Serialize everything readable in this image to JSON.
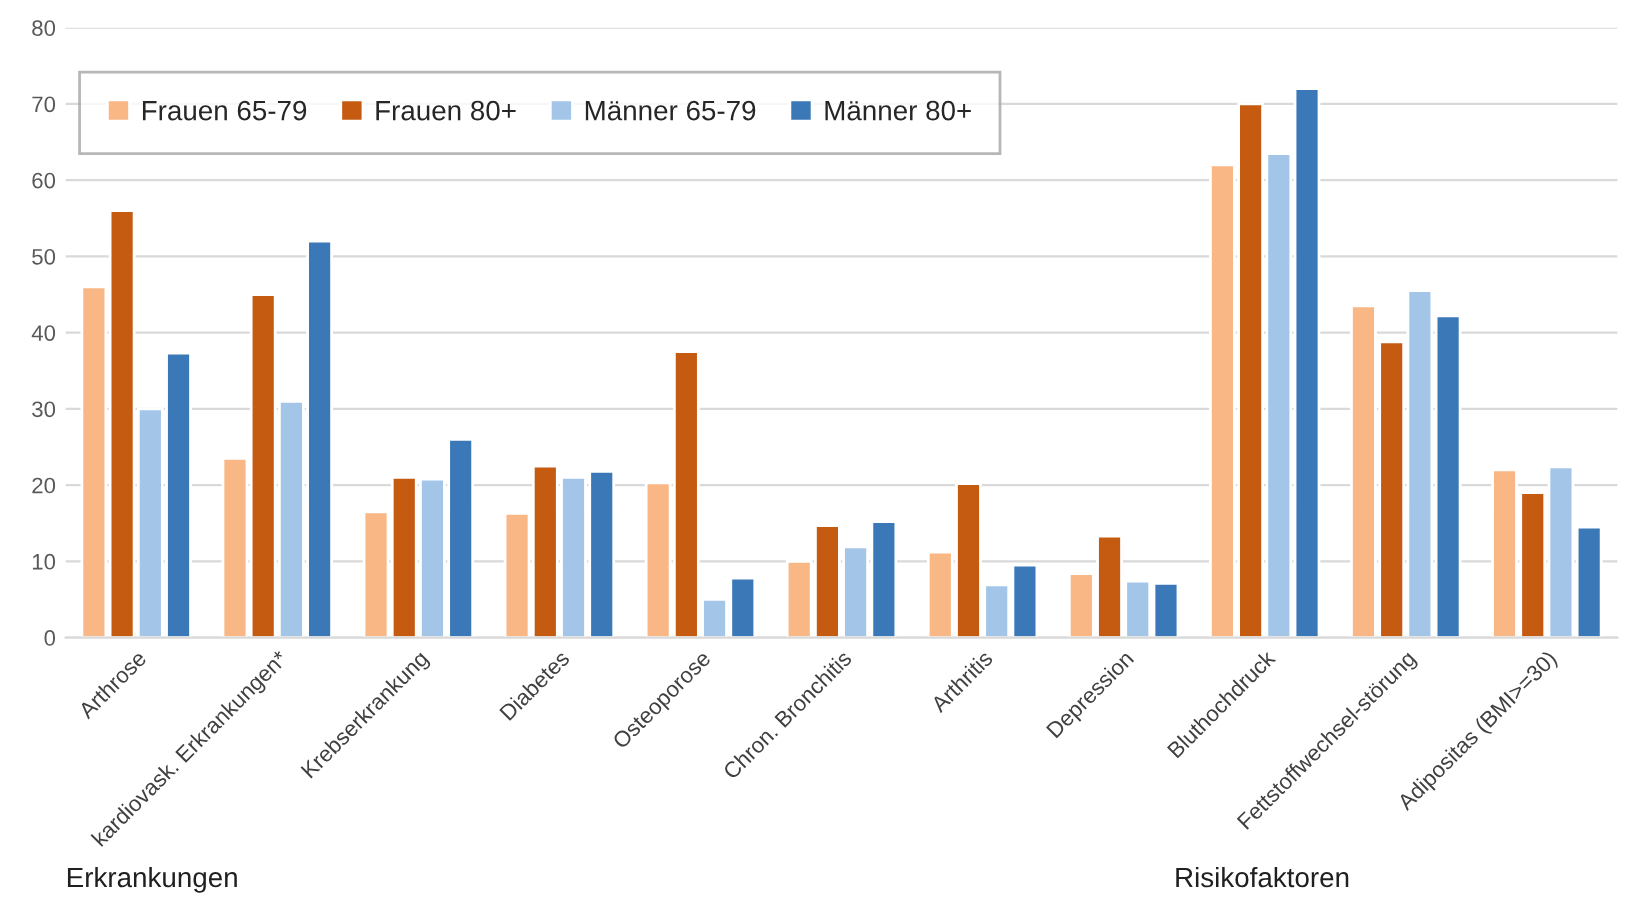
{
  "chart_data": {
    "type": "bar",
    "categories": [
      "Arthrose",
      "kardiovask. Erkrankungen*",
      "Krebserkrankung",
      "Diabetes",
      "Osteoporose",
      "Chron. Bronchitis",
      "Arthritis",
      "Depression",
      "Bluthochdruck",
      "Fettstoffwechsel-störung",
      "Adipositas (BMI>=30)"
    ],
    "series": [
      {
        "name": "Frauen 65-79",
        "color": "#f8b784",
        "values": [
          46,
          23.5,
          16.5,
          16.3,
          20.3,
          10,
          11.2,
          8.4,
          62,
          43.5,
          22
        ]
      },
      {
        "name": "Frauen 80+",
        "color": "#c55a11",
        "values": [
          56,
          45,
          21,
          22.5,
          37.5,
          14.7,
          20.2,
          13.3,
          70,
          38.8,
          19
        ]
      },
      {
        "name": "Männer 65-79",
        "color": "#a3c6e8",
        "values": [
          30,
          31,
          20.8,
          21,
          5,
          11.9,
          6.9,
          7.4,
          63.5,
          45.5,
          22.4
        ]
      },
      {
        "name": "Männer 80+",
        "color": "#3a78b8",
        "values": [
          37.3,
          52,
          26,
          21.8,
          7.8,
          15.2,
          9.5,
          7.1,
          72,
          42.2,
          14.5
        ]
      }
    ],
    "ylim": [
      0,
      80
    ],
    "yticks": [
      0,
      10,
      20,
      30,
      40,
      50,
      60,
      70,
      80
    ],
    "grid": "y",
    "legend": "top left",
    "annotations": [
      "Erkrankungen",
      "Risikofaktoren"
    ]
  }
}
